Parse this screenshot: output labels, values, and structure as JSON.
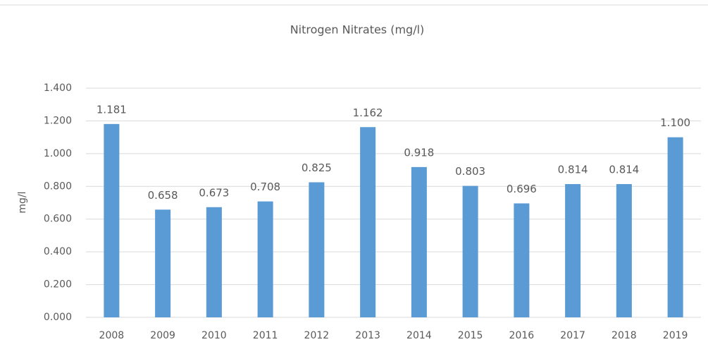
{
  "chart_data": {
    "type": "bar",
    "title": "Nitrogen Nitrates (mg/l)",
    "y_label": "mg/l",
    "categories": [
      "2008",
      "2009",
      "2010",
      "2011",
      "2012",
      "2013",
      "2014",
      "2015",
      "2016",
      "2017",
      "2018",
      "2019"
    ],
    "values": [
      1.181,
      0.658,
      0.673,
      0.708,
      0.825,
      1.162,
      0.918,
      0.803,
      0.696,
      0.814,
      0.814,
      1.1
    ],
    "value_labels": [
      "1.181",
      "0.658",
      "0.673",
      "0.708",
      "0.825",
      "1.162",
      "0.918",
      "0.803",
      "0.696",
      "0.814",
      "0.814",
      "1.100"
    ],
    "color": "#5b9bd5",
    "ylim": [
      0,
      1.4
    ],
    "yticks": [
      {
        "value": 0,
        "label": "0.000"
      },
      {
        "value": 0.2,
        "label": "0.200"
      },
      {
        "value": 0.4,
        "label": "0.400"
      },
      {
        "value": 0.6,
        "label": "0.600"
      },
      {
        "value": 0.8,
        "label": "0.800"
      },
      {
        "value": 1,
        "label": "1.000"
      },
      {
        "value": 1.2,
        "label": "1.200"
      },
      {
        "value": 1.4,
        "label": "1.400"
      }
    ],
    "grid": true
  }
}
